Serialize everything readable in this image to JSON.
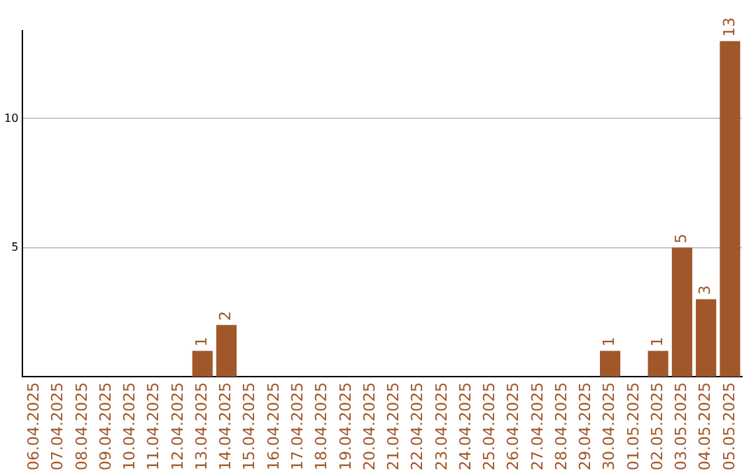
{
  "chart_data": {
    "type": "bar",
    "categories": [
      "06.04.2025",
      "07.04.2025",
      "08.04.2025",
      "09.04.2025",
      "10.04.2025",
      "11.04.2025",
      "12.04.2025",
      "13.04.2025",
      "14.04.2025",
      "15.04.2025",
      "16.04.2025",
      "17.04.2025",
      "18.04.2025",
      "19.04.2025",
      "20.04.2025",
      "21.04.2025",
      "22.04.2025",
      "23.04.2025",
      "24.04.2025",
      "25.04.2025",
      "26.04.2025",
      "27.04.2025",
      "28.04.2025",
      "29.04.2025",
      "30.04.2025",
      "01.05.2025",
      "02.05.2025",
      "03.05.2025",
      "04.05.2025",
      "05.05.2025"
    ],
    "values": [
      0,
      0,
      0,
      0,
      0,
      0,
      0,
      1,
      2,
      0,
      0,
      0,
      0,
      0,
      0,
      0,
      0,
      0,
      0,
      0,
      0,
      0,
      0,
      0,
      1,
      0,
      1,
      5,
      3,
      13
    ],
    "value_labels": [
      null,
      null,
      null,
      null,
      null,
      null,
      null,
      "1",
      "2",
      null,
      null,
      null,
      null,
      null,
      null,
      null,
      null,
      null,
      null,
      null,
      null,
      null,
      null,
      null,
      "1",
      null,
      "1",
      "5",
      "3",
      "13"
    ],
    "color": "#a0572a",
    "ylim": [
      0,
      13.4
    ],
    "yticks": [
      5,
      10
    ],
    "grid": "y",
    "legend": false
  }
}
